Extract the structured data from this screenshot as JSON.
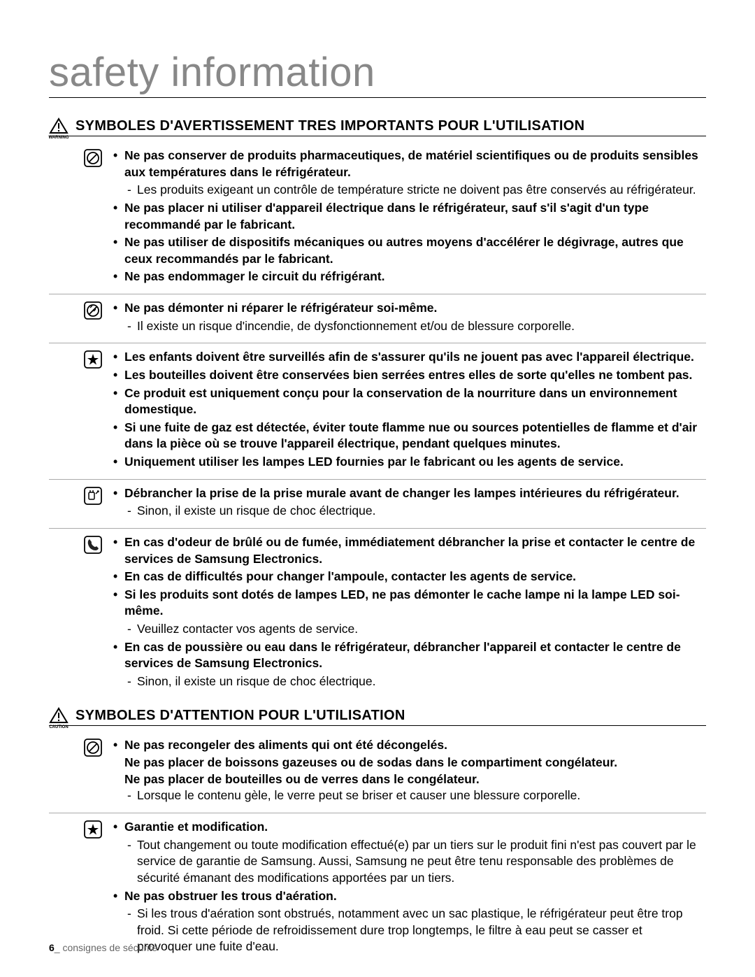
{
  "page_title": "safety information",
  "title_color": "#888888",
  "title_fontsize": 58,
  "body_fontsize": 17.5,
  "heading_fontsize": 20,
  "icons": {
    "warning_triangle": "warning-triangle",
    "prohibit": "prohibit-icon",
    "no_disassemble": "no-disassemble-icon",
    "star": "star-icon",
    "unplug": "unplug-icon",
    "phone": "phone-icon"
  },
  "sections": [
    {
      "tiny_label": "WARNING",
      "heading": "SYMBOLES D'AVERTISSEMENT TRES IMPORTANTS POUR L'UTILISATION",
      "blocks": [
        {
          "icon": "prohibit",
          "divider": false,
          "items": [
            {
              "type": "bold",
              "text": "Ne pas conserver de produits pharmaceutiques, de matériel scientifiques ou de produits sensibles aux températures dans le réfrigérateur."
            },
            {
              "type": "dash",
              "text": "Les produits exigeant un contrôle de température stricte ne doivent pas être conservés au réfrigérateur."
            },
            {
              "type": "bold",
              "text": "Ne pas placer ni utiliser d'appareil électrique dans le réfrigérateur, sauf s'il s'agit d'un type recommandé par le fabricant."
            },
            {
              "type": "bold",
              "text": "Ne pas utiliser de dispositifs mécaniques ou autres moyens d'accélérer le dégivrage, autres que ceux recommandés par le fabricant."
            },
            {
              "type": "bold",
              "text": "Ne pas endommager le circuit du réfrigérant."
            }
          ]
        },
        {
          "icon": "no_disassemble",
          "divider": true,
          "items": [
            {
              "type": "bold",
              "text": "Ne pas démonter ni réparer le réfrigérateur soi-même."
            },
            {
              "type": "dash",
              "text": "Il existe un risque d'incendie, de dysfonctionnement et/ou de blessure corporelle."
            }
          ]
        },
        {
          "icon": "star",
          "divider": true,
          "items": [
            {
              "type": "bold",
              "text": "Les enfants doivent être surveillés afin de s'assurer qu'ils ne jouent pas avec l'appareil électrique."
            },
            {
              "type": "bold",
              "text": "Les bouteilles doivent être conservées bien serrées entres elles de sorte qu'elles ne tombent pas."
            },
            {
              "type": "bold",
              "text": "Ce produit est uniquement conçu pour la conservation de la nourriture dans un environnement domestique."
            },
            {
              "type": "bold",
              "text": "Si une fuite de gaz est détectée, éviter toute flamme nue ou sources potentielles de flamme et d'air dans la pièce où se trouve l'appareil électrique, pendant quelques minutes."
            },
            {
              "type": "bold",
              "text": "Uniquement utiliser les lampes LED fournies par le fabricant ou les agents de service."
            }
          ]
        },
        {
          "icon": "unplug",
          "divider": true,
          "items": [
            {
              "type": "bold",
              "text": "Débrancher la prise de la prise murale avant de changer les lampes intérieures du réfrigérateur."
            },
            {
              "type": "dash",
              "text": "Sinon, il existe un risque de choc électrique."
            }
          ]
        },
        {
          "icon": "phone",
          "divider": true,
          "items": [
            {
              "type": "bold",
              "text": "En cas d'odeur de brûlé ou de fumée, immédiatement débrancher la prise et contacter le centre de services de Samsung Electronics."
            },
            {
              "type": "bold",
              "text": "En cas de difficultés pour changer l'ampoule,  contacter les agents de service."
            },
            {
              "type": "bold",
              "text": "Si les produits sont dotés de lampes LED, ne pas démonter le cache lampe ni la lampe LED soi-même."
            },
            {
              "type": "dash",
              "text": "Veuillez contacter vos agents de service."
            },
            {
              "type": "bold",
              "text": "En cas de poussière ou eau dans le réfrigérateur, débrancher l'appareil et contacter le centre de services de Samsung Electronics."
            },
            {
              "type": "dash",
              "text": "Sinon, il existe un risque de choc électrique."
            }
          ]
        }
      ]
    },
    {
      "tiny_label": "CAUTION",
      "heading": "SYMBOLES D'ATTENTION POUR L'UTILISATION",
      "blocks": [
        {
          "icon": "prohibit",
          "divider": false,
          "items": [
            {
              "type": "bold",
              "text": "Ne pas recongeler des aliments qui ont été décongelés."
            },
            {
              "type": "bold-nobullet",
              "text": "Ne pas placer de boissons gazeuses ou de sodas dans le compartiment congélateur."
            },
            {
              "type": "bold-nobullet",
              "text": "Ne pas placer de bouteilles ou de verres dans le congélateur."
            },
            {
              "type": "dash",
              "text": "Lorsque le contenu gèle, le verre peut se briser et causer une blessure corporelle."
            }
          ]
        },
        {
          "icon": "star",
          "divider": true,
          "items": [
            {
              "type": "bold",
              "text": "Garantie et modification."
            },
            {
              "type": "dash",
              "text": "Tout changement ou toute modification effectué(e) par un tiers sur le produit fini n'est pas couvert par le service de garantie de Samsung. Aussi, Samsung ne peut être tenu responsable des problèmes de sécurité émanant des modifications apportées par un tiers."
            },
            {
              "type": "bold",
              "text": "Ne pas obstruer les trous d'aération."
            },
            {
              "type": "dash",
              "text": "Si les trous d'aération sont obstrués, notamment avec un sac plastique, le réfrigérateur peut être trop froid. Si cette période de refroidissement dure trop longtemps, le filtre à eau peut se casser et provoquer une fuite d'eau."
            }
          ]
        }
      ]
    }
  ],
  "footer": {
    "page_number": "6",
    "separator": "_",
    "label": "consignes de sécurité"
  }
}
